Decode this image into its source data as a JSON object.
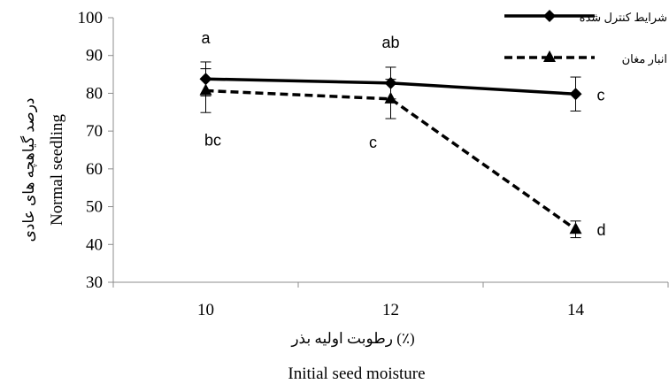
{
  "chart_data": {
    "type": "line",
    "x": [
      10,
      12,
      14
    ],
    "xlim": [
      9,
      15
    ],
    "ylim": [
      30,
      100
    ],
    "yticks": [
      30,
      40,
      50,
      60,
      70,
      80,
      90,
      100
    ],
    "xlabel_fa": "رطوبت اولیه بذر (٪)",
    "xlabel_en": "Initial seed moisture",
    "ylabel_fa": "درصد گیاهچه های عادی",
    "ylabel_en": "Normal seedling",
    "grid": false,
    "legend_position": "top-right",
    "series": [
      {
        "name": "شرایط کنترل شده",
        "values": [
          83.8,
          82.7,
          79.8
        ],
        "error": [
          4.5,
          4.2,
          4.5
        ],
        "marker": "diamond",
        "line_style": "solid",
        "letters": [
          "a",
          "ab",
          "c"
        ]
      },
      {
        "name": "انبار مغان",
        "values": [
          80.7,
          78.5,
          44.0
        ],
        "error": [
          5.8,
          5.2,
          2.2
        ],
        "marker": "triangle",
        "line_style": "dashed",
        "letters": [
          "bc",
          "c",
          "d"
        ]
      }
    ]
  }
}
